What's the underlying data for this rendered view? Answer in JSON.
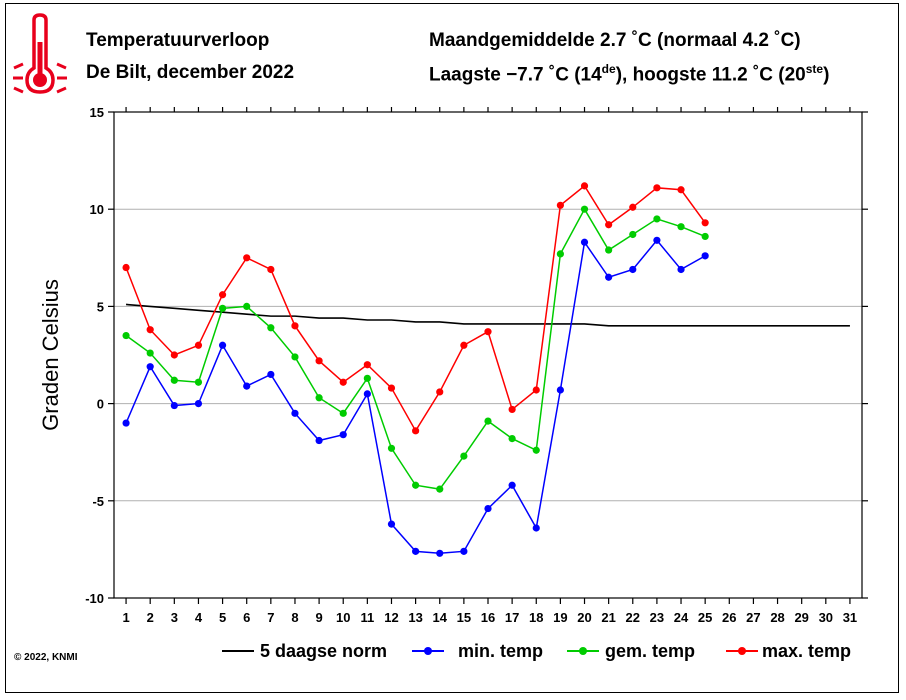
{
  "header": {
    "title_line1": "Temperatuurverloop",
    "title_line2": "De Bilt, december 2022",
    "summary_line1": "Maandgemiddelde 2.7 ˚C (normaal 4.2 ˚C)",
    "summary_line2_pre": "Laagste −7.7 ˚C (14",
    "summary_line2_sup1": "de",
    "summary_line2_mid": "), hoogste 11.2 ˚C (20",
    "summary_line2_sup2": "ste",
    "summary_line2_post": ")"
  },
  "copyright": "© 2022, KNMI",
  "colors": {
    "norm": "#000000",
    "min": "#0000ff",
    "gem": "#00cc00",
    "max": "#ff0000",
    "icon": "#e8001c"
  },
  "icon": "thermometer-icon",
  "chart_data": {
    "type": "line",
    "title": "Temperatuurverloop",
    "ylabel": "Graden Celsius",
    "xlabel": "",
    "xlim": [
      1,
      31
    ],
    "ylim": [
      -10,
      15
    ],
    "yticks": [
      -10,
      -5,
      0,
      5,
      10,
      15
    ],
    "x": [
      1,
      2,
      3,
      4,
      5,
      6,
      7,
      8,
      9,
      10,
      11,
      12,
      13,
      14,
      15,
      16,
      17,
      18,
      19,
      20,
      21,
      22,
      23,
      24,
      25,
      26,
      27,
      28,
      29,
      30,
      31
    ],
    "grid": true,
    "legend_position": "bottom",
    "series": [
      {
        "name": "5 daagse norm",
        "color": "#000000",
        "markers": false,
        "x": [
          1,
          2,
          3,
          4,
          5,
          6,
          7,
          8,
          9,
          10,
          11,
          12,
          13,
          14,
          15,
          16,
          17,
          18,
          19,
          20,
          21,
          22,
          23,
          24,
          25,
          26,
          27,
          28,
          29,
          30,
          31
        ],
        "values": [
          5.1,
          5.0,
          4.9,
          4.8,
          4.7,
          4.6,
          4.5,
          4.5,
          4.4,
          4.4,
          4.3,
          4.3,
          4.2,
          4.2,
          4.1,
          4.1,
          4.1,
          4.1,
          4.1,
          4.1,
          4.0,
          4.0,
          4.0,
          4.0,
          4.0,
          4.0,
          4.0,
          4.0,
          4.0,
          4.0,
          4.0
        ]
      },
      {
        "name": "min. temp",
        "color": "#0000ff",
        "markers": true,
        "x": [
          1,
          2,
          3,
          4,
          5,
          6,
          7,
          8,
          9,
          10,
          11,
          12,
          13,
          14,
          15,
          16,
          17,
          18,
          19,
          20,
          21,
          22,
          23,
          24,
          25
        ],
        "values": [
          -1.0,
          1.9,
          -0.1,
          0.0,
          3.0,
          0.9,
          1.5,
          -0.5,
          -1.9,
          -1.6,
          0.5,
          -6.2,
          -7.6,
          -7.7,
          -7.6,
          -5.4,
          -4.2,
          -6.4,
          0.7,
          8.3,
          6.5,
          6.9,
          8.4,
          6.9,
          7.6
        ]
      },
      {
        "name": "gem. temp",
        "color": "#00cc00",
        "markers": true,
        "x": [
          1,
          2,
          3,
          4,
          5,
          6,
          7,
          8,
          9,
          10,
          11,
          12,
          13,
          14,
          15,
          16,
          17,
          18,
          19,
          20,
          21,
          22,
          23,
          24,
          25
        ],
        "values": [
          3.5,
          2.6,
          1.2,
          1.1,
          4.9,
          5.0,
          3.9,
          2.4,
          0.3,
          -0.5,
          1.3,
          -2.3,
          -4.2,
          -4.4,
          -2.7,
          -0.9,
          -1.8,
          -2.4,
          7.7,
          10.0,
          7.9,
          8.7,
          9.5,
          9.1,
          8.6
        ]
      },
      {
        "name": "max. temp",
        "color": "#ff0000",
        "markers": true,
        "x": [
          1,
          2,
          3,
          4,
          5,
          6,
          7,
          8,
          9,
          10,
          11,
          12,
          13,
          14,
          15,
          16,
          17,
          18,
          19,
          20,
          21,
          22,
          23,
          24,
          25
        ],
        "values": [
          7.0,
          3.8,
          2.5,
          3.0,
          5.6,
          7.5,
          6.9,
          4.0,
          2.2,
          1.1,
          2.0,
          0.8,
          -1.4,
          0.6,
          3.0,
          3.7,
          -0.3,
          0.7,
          10.2,
          11.2,
          9.2,
          10.1,
          11.1,
          11.0,
          9.3
        ]
      }
    ]
  }
}
